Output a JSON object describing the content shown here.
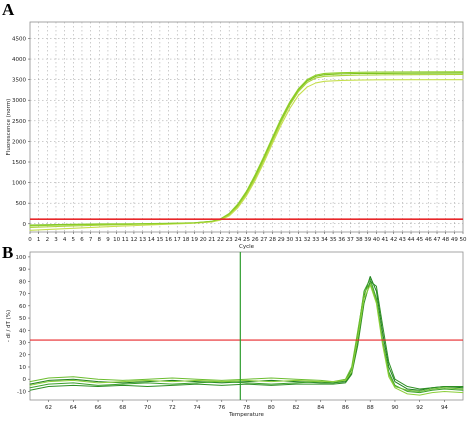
{
  "colors": {
    "threshold": "#e8272a",
    "curve_a": [
      "#7cc31e",
      "#a9d43a",
      "#c6df4f",
      "#8fcf2a"
    ],
    "curve_b": [
      "#1f7f1f",
      "#3aa02a",
      "#6bbd2f",
      "#2e8f24",
      "#8ccf3a"
    ],
    "marker": "#2e9b2e",
    "grid": "#9a9a9a"
  },
  "chart_data": [
    {
      "panel_label": "A",
      "type": "line",
      "xlabel": "Cycle",
      "ylabel": "Fluorescence (norm)",
      "xlim": [
        0,
        50
      ],
      "ylim": [
        -200,
        4900
      ],
      "xticks": [
        0,
        1,
        2,
        3,
        4,
        5,
        6,
        7,
        8,
        9,
        10,
        11,
        12,
        13,
        14,
        15,
        16,
        17,
        18,
        19,
        20,
        21,
        22,
        23,
        24,
        25,
        26,
        27,
        28,
        29,
        30,
        31,
        32,
        33,
        34,
        35,
        36,
        37,
        38,
        39,
        40,
        41,
        42,
        43,
        44,
        45,
        46,
        47,
        48,
        49,
        50
      ],
      "yticks": [
        0,
        500,
        1000,
        1500,
        2000,
        2500,
        3000,
        3500,
        4000,
        4500
      ],
      "grid": true,
      "threshold": 110,
      "series": [
        {
          "x": [
            0,
            4,
            8,
            12,
            16,
            19,
            21,
            22,
            23,
            24,
            25,
            26,
            27,
            28,
            29,
            30,
            31,
            32,
            33,
            34,
            36,
            38,
            40,
            44,
            50
          ],
          "y": [
            -30,
            -15,
            -5,
            0,
            10,
            25,
            60,
            110,
            230,
            450,
            760,
            1150,
            1590,
            2060,
            2520,
            2920,
            3250,
            3470,
            3580,
            3620,
            3640,
            3650,
            3650,
            3655,
            3660
          ]
        },
        {
          "x": [
            0,
            4,
            8,
            12,
            16,
            19,
            21,
            22,
            23,
            24,
            25,
            26,
            27,
            28,
            29,
            30,
            31,
            32,
            33,
            34,
            36,
            38,
            40,
            44,
            50
          ],
          "y": [
            -90,
            -60,
            -35,
            -15,
            5,
            20,
            55,
            100,
            210,
            420,
            720,
            1100,
            1540,
            2010,
            2470,
            2880,
            3210,
            3430,
            3540,
            3580,
            3600,
            3610,
            3615,
            3620,
            3625
          ]
        },
        {
          "x": [
            0,
            4,
            8,
            12,
            16,
            19,
            21,
            22,
            23,
            24,
            25,
            26,
            27,
            28,
            29,
            30,
            31,
            32,
            33,
            34,
            36,
            38,
            40,
            44,
            50
          ],
          "y": [
            -160,
            -120,
            -80,
            -45,
            -10,
            15,
            45,
            90,
            190,
            390,
            680,
            1050,
            1480,
            1950,
            2400,
            2800,
            3120,
            3320,
            3420,
            3460,
            3480,
            3490,
            3495,
            3498,
            3500
          ]
        },
        {
          "x": [
            0,
            4,
            8,
            12,
            16,
            19,
            21,
            22,
            23,
            24,
            25,
            26,
            27,
            28,
            29,
            30,
            31,
            32,
            33,
            34,
            36,
            38,
            40,
            44,
            50
          ],
          "y": [
            -50,
            -30,
            -15,
            -5,
            5,
            25,
            60,
            120,
            250,
            480,
            790,
            1190,
            1630,
            2100,
            2560,
            2960,
            3280,
            3500,
            3610,
            3650,
            3670,
            3680,
            3685,
            3688,
            3690
          ]
        }
      ]
    },
    {
      "panel_label": "B",
      "type": "line",
      "xlabel": "Temperature",
      "ylabel": "- dI / dT (%)",
      "xlim": [
        60.5,
        95.5
      ],
      "ylim": [
        -17,
        104
      ],
      "xticks": [
        62,
        64,
        66,
        68,
        70,
        72,
        74,
        76,
        78,
        80,
        82,
        84,
        86,
        88,
        90,
        92,
        94
      ],
      "yticks": [
        -10,
        0,
        10,
        20,
        30,
        40,
        50,
        60,
        70,
        80,
        90,
        100
      ],
      "grid": false,
      "threshold": 32,
      "marker_x": 77.5,
      "series": [
        {
          "x": [
            60.5,
            62,
            64,
            66,
            68,
            70,
            72,
            74,
            76,
            78,
            80,
            82,
            84,
            85,
            86,
            86.5,
            87,
            87.5,
            88,
            88.5,
            89,
            89.5,
            90,
            91,
            92,
            93,
            94,
            95.5
          ],
          "y": [
            -4,
            -1,
            0,
            -2,
            -3,
            -2,
            -1,
            -2,
            -3,
            -2,
            -1,
            -2,
            -3,
            -3,
            -2,
            5,
            32,
            68,
            84,
            72,
            38,
            10,
            -2,
            -8,
            -9,
            -7,
            -6,
            -7
          ]
        },
        {
          "x": [
            60.5,
            62,
            64,
            66,
            68,
            70,
            72,
            74,
            76,
            78,
            80,
            82,
            84,
            85,
            86,
            86.5,
            87,
            87.5,
            88,
            88.5,
            89,
            89.5,
            90,
            91,
            92,
            93,
            94,
            95.5
          ],
          "y": [
            -7,
            -4,
            -3,
            -5,
            -4,
            -3,
            -4,
            -3,
            -2,
            -3,
            -4,
            -3,
            -2,
            -3,
            -1,
            8,
            38,
            72,
            82,
            66,
            32,
            6,
            -5,
            -10,
            -11,
            -9,
            -8,
            -9
          ]
        },
        {
          "x": [
            60.5,
            62,
            64,
            66,
            68,
            70,
            72,
            74,
            76,
            78,
            80,
            82,
            84,
            85,
            86,
            86.5,
            87,
            87.5,
            88,
            88.5,
            89,
            89.5,
            90,
            91,
            92,
            93,
            94,
            95.5
          ],
          "y": [
            -2,
            1,
            2,
            0,
            -1,
            0,
            1,
            0,
            -1,
            0,
            1,
            0,
            -1,
            -2,
            0,
            10,
            40,
            70,
            79,
            64,
            30,
            4,
            -6,
            -9,
            -10,
            -8,
            -7,
            -8
          ]
        },
        {
          "x": [
            60.5,
            62,
            64,
            66,
            68,
            70,
            72,
            74,
            76,
            78,
            80,
            82,
            84,
            85,
            86,
            86.5,
            87,
            87.5,
            88,
            88.5,
            89,
            89.5,
            90,
            91,
            92,
            93,
            94,
            95.5
          ],
          "y": [
            -9,
            -6,
            -5,
            -6,
            -5,
            -6,
            -5,
            -4,
            -5,
            -4,
            -5,
            -4,
            -4,
            -4,
            -3,
            4,
            28,
            62,
            80,
            76,
            44,
            14,
            0,
            -6,
            -8,
            -7,
            -6,
            -6
          ]
        },
        {
          "x": [
            60.5,
            62,
            64,
            66,
            68,
            70,
            72,
            74,
            76,
            78,
            80,
            82,
            84,
            85,
            86,
            86.5,
            87,
            87.5,
            88,
            88.5,
            89,
            89.5,
            90,
            91,
            92,
            93,
            94,
            95.5
          ],
          "y": [
            -5,
            -2,
            -1,
            -3,
            -2,
            -1,
            -2,
            -1,
            -2,
            -1,
            -2,
            -1,
            -2,
            -2,
            -1,
            6,
            34,
            66,
            77,
            62,
            28,
            2,
            -7,
            -12,
            -13,
            -11,
            -10,
            -11
          ]
        }
      ]
    }
  ]
}
